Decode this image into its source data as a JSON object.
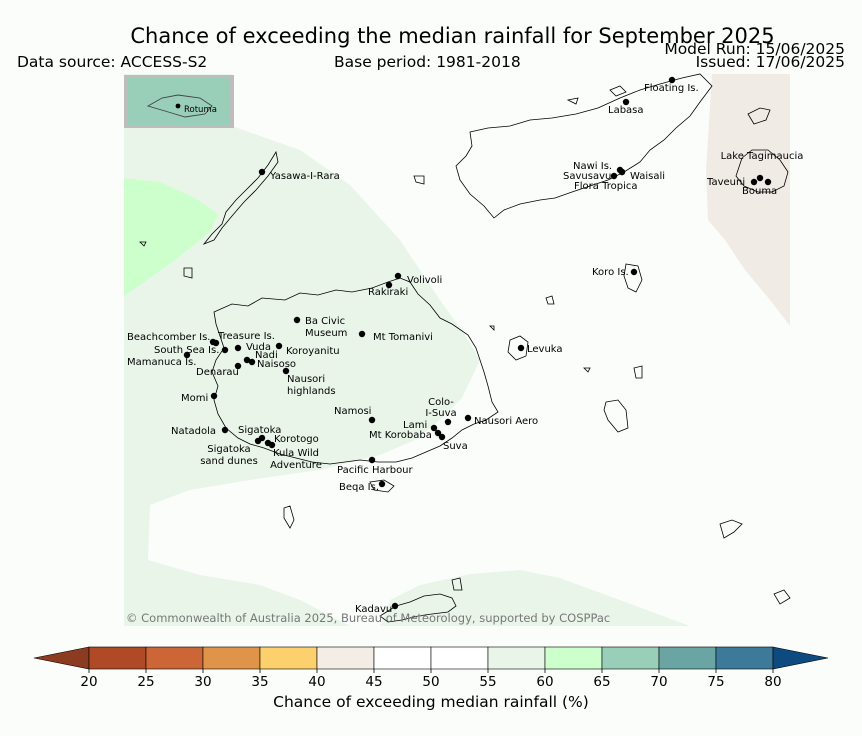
{
  "header": {
    "title": "Chance of exceeding the median rainfall for September 2025",
    "data_source": "Data source: ACCESS-S2",
    "base_period": "Base period: 1981-2018",
    "model_run": "Model Run: 15/06/2025",
    "issued": "Issued: 17/06/2025"
  },
  "map": {
    "inset_label": "Rotuma",
    "copyright": "© Commonwealth of Australia 2025, Bureau of Meteorology, supported by COSPPac",
    "places": [
      {
        "id": "floating-is",
        "label": "Floating Is."
      },
      {
        "id": "labasa",
        "label": "Labasa"
      },
      {
        "id": "yasawa",
        "label": "Yasawa-I-Rara"
      },
      {
        "id": "nawi",
        "label": "Nawi Is."
      },
      {
        "id": "savusavu",
        "label": "Savusavu"
      },
      {
        "id": "waisali",
        "label": "Waisali"
      },
      {
        "id": "flora",
        "label": "Flora Tropica"
      },
      {
        "id": "lake-tagi",
        "label": "Lake Tagimaucia"
      },
      {
        "id": "taveuni",
        "label": "Taveuni"
      },
      {
        "id": "bouma",
        "label": "Bouma"
      },
      {
        "id": "koro",
        "label": "Koro Is."
      },
      {
        "id": "volivoli",
        "label": "Volivoli"
      },
      {
        "id": "rakiraki",
        "label": "Rakiraki"
      },
      {
        "id": "ba-civic",
        "label": "Ba Civic Museum"
      },
      {
        "id": "tomanivi",
        "label": "Mt Tomanivi"
      },
      {
        "id": "levuka",
        "label": "Levuka"
      },
      {
        "id": "beachcomber",
        "label": "Beachcomber Is."
      },
      {
        "id": "treasure",
        "label": "Treasure Is."
      },
      {
        "id": "south-sea",
        "label": "South Sea Is."
      },
      {
        "id": "vuda",
        "label": "Vuda"
      },
      {
        "id": "koroyanitu",
        "label": "Koroyanitu"
      },
      {
        "id": "nadi",
        "label": "Nadi"
      },
      {
        "id": "mamanuca",
        "label": "Mamanuca Is."
      },
      {
        "id": "naisoso",
        "label": "Naisoso"
      },
      {
        "id": "denarau",
        "label": "Denarau"
      },
      {
        "id": "nausori-hl",
        "label": "Nausori highlands"
      },
      {
        "id": "momi",
        "label": "Momi"
      },
      {
        "id": "namosi",
        "label": "Namosi"
      },
      {
        "id": "colo-i-suva",
        "label": "Colo-I-Suva"
      },
      {
        "id": "lami",
        "label": "Lami"
      },
      {
        "id": "nausori-aero",
        "label": "Nausori Aero"
      },
      {
        "id": "korobaba",
        "label": "Mt Korobaba"
      },
      {
        "id": "suva",
        "label": "Suva"
      },
      {
        "id": "natadola",
        "label": "Natadola"
      },
      {
        "id": "sigatoka",
        "label": "Sigatoka"
      },
      {
        "id": "korotogo",
        "label": "Korotogo"
      },
      {
        "id": "sig-dunes",
        "label": "Sigatoka sand dunes"
      },
      {
        "id": "kula",
        "label": "Kula Wild Adventure"
      },
      {
        "id": "pacific-harbour",
        "label": "Pacific Harbour"
      },
      {
        "id": "beqa",
        "label": "Beqa Is."
      },
      {
        "id": "kadavu",
        "label": "Kadavu"
      }
    ]
  },
  "colorbar": {
    "label": "Chance of exceeding median rainfall (%)",
    "ticks": [
      "20",
      "25",
      "30",
      "35",
      "40",
      "45",
      "50",
      "55",
      "60",
      "65",
      "70",
      "75",
      "80"
    ],
    "under_color": "#8c3a20",
    "over_color": "#0d4a7f",
    "colors": [
      "#b04a26",
      "#cc6636",
      "#e0944a",
      "#fdd06e",
      "#f3ede6",
      "#ffffff",
      "#ffffff",
      "#eaf5ea",
      "#ccffcc",
      "#99cfb8",
      "#6aa5a3",
      "#3d7a9a"
    ]
  }
}
